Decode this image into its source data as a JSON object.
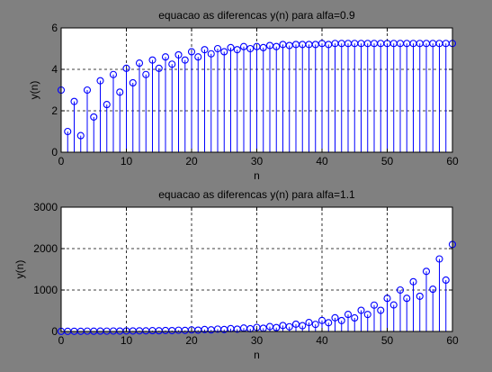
{
  "figure": {
    "background": "#808080"
  },
  "chart_data": [
    {
      "type": "stem",
      "title": "equacao as diferencas y(n) para alfa=0.9",
      "xlabel": "n",
      "ylabel": "y(n)",
      "xlim": [
        0,
        60
      ],
      "ylim": [
        0,
        6
      ],
      "xticks": [
        0,
        10,
        20,
        30,
        40,
        50,
        60
      ],
      "yticks": [
        0,
        2,
        4,
        6
      ],
      "grid": true,
      "color": "#0000ff",
      "x": [
        0,
        1,
        2,
        3,
        4,
        5,
        6,
        7,
        8,
        9,
        10,
        11,
        12,
        13,
        14,
        15,
        16,
        17,
        18,
        19,
        20,
        21,
        22,
        23,
        24,
        25,
        26,
        27,
        28,
        29,
        30,
        31,
        32,
        33,
        34,
        35,
        36,
        37,
        38,
        39,
        40,
        41,
        42,
        43,
        44,
        45,
        46,
        47,
        48,
        49,
        50,
        51,
        52,
        53,
        54,
        55,
        56,
        57,
        58,
        59,
        60
      ],
      "y": [
        3.0,
        1.0,
        2.45,
        0.8,
        3.0,
        1.7,
        3.45,
        2.3,
        3.75,
        2.9,
        4.05,
        3.35,
        4.3,
        3.75,
        4.45,
        4.05,
        4.6,
        4.25,
        4.7,
        4.45,
        4.85,
        4.6,
        4.95,
        4.75,
        5.0,
        4.85,
        5.05,
        4.95,
        5.1,
        5.0,
        5.1,
        5.05,
        5.15,
        5.1,
        5.2,
        5.15,
        5.2,
        5.2,
        5.2,
        5.2,
        5.25,
        5.2,
        5.25,
        5.25,
        5.25,
        5.25,
        5.25,
        5.25,
        5.25,
        5.25,
        5.25,
        5.25,
        5.25,
        5.25,
        5.25,
        5.25,
        5.25,
        5.25,
        5.25,
        5.25,
        5.25
      ]
    },
    {
      "type": "stem",
      "title": "equacao as diferencas y(n) para alfa=1.1",
      "xlabel": "n",
      "ylabel": "y(n)",
      "xlim": [
        0,
        60
      ],
      "ylim": [
        0,
        3000
      ],
      "xticks": [
        0,
        10,
        20,
        30,
        40,
        50,
        60
      ],
      "yticks": [
        0,
        1000,
        2000,
        3000
      ],
      "grid": true,
      "color": "#0000ff",
      "x": [
        0,
        1,
        2,
        3,
        4,
        5,
        6,
        7,
        8,
        9,
        10,
        11,
        12,
        13,
        14,
        15,
        16,
        17,
        18,
        19,
        20,
        21,
        22,
        23,
        24,
        25,
        26,
        27,
        28,
        29,
        30,
        31,
        32,
        33,
        34,
        35,
        36,
        37,
        38,
        39,
        40,
        41,
        42,
        43,
        44,
        45,
        46,
        47,
        48,
        49,
        50,
        51,
        52,
        53,
        54,
        55,
        56,
        57,
        58,
        59,
        60
      ],
      "y": [
        3,
        3,
        5,
        4,
        8,
        6,
        9,
        8,
        11,
        10,
        13,
        13,
        16,
        15,
        20,
        17,
        24,
        21,
        30,
        26,
        38,
        32,
        47,
        39,
        57,
        47,
        69,
        56,
        82,
        66,
        98,
        78,
        118,
        93,
        143,
        114,
        176,
        139,
        216,
        171,
        266,
        211,
        330,
        263,
        411,
        327,
        510,
        410,
        636,
        510,
        800,
        640,
        1000,
        800,
        1200,
        850,
        1450,
        1020,
        1750,
        1240,
        2100
      ]
    }
  ]
}
